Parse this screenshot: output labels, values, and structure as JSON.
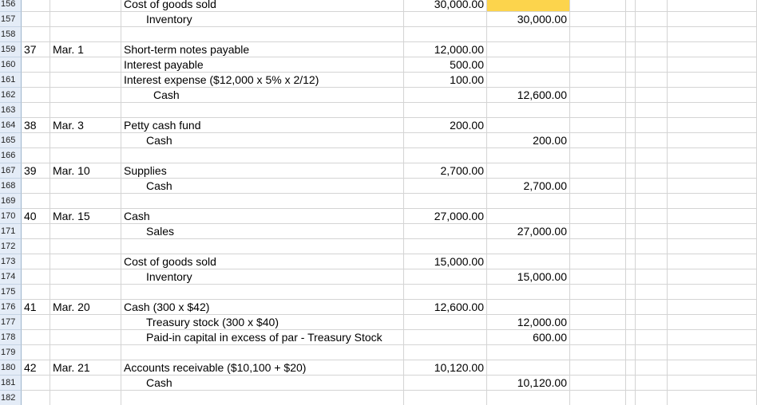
{
  "rows": [
    {
      "n": "156",
      "num": "",
      "date": "",
      "desc": "Cost of goods sold",
      "indent": 0,
      "debit": "30,000.00",
      "credit": ""
    },
    {
      "n": "157",
      "num": "",
      "date": "",
      "desc": "Inventory",
      "indent": 1,
      "debit": "",
      "credit": "30,000.00"
    },
    {
      "n": "158",
      "num": "",
      "date": "",
      "desc": "",
      "indent": 0,
      "debit": "",
      "credit": ""
    },
    {
      "n": "159",
      "num": "37",
      "date": "Mar. 1",
      "desc": "Short-term notes payable",
      "indent": 0,
      "debit": "12,000.00",
      "credit": ""
    },
    {
      "n": "160",
      "num": "",
      "date": "",
      "desc": "Interest payable",
      "indent": 0,
      "debit": "500.00",
      "credit": ""
    },
    {
      "n": "161",
      "num": "",
      "date": "",
      "desc": "Interest expense ($12,000 x 5% x 2/12)",
      "indent": 0,
      "debit": "100.00",
      "credit": ""
    },
    {
      "n": "162",
      "num": "",
      "date": "",
      "desc": "Cash",
      "indent": 2,
      "debit": "",
      "credit": "12,600.00"
    },
    {
      "n": "163",
      "num": "",
      "date": "",
      "desc": "",
      "indent": 0,
      "debit": "",
      "credit": ""
    },
    {
      "n": "164",
      "num": "38",
      "date": "Mar. 3",
      "desc": "Petty cash fund",
      "indent": 0,
      "debit": "200.00",
      "credit": ""
    },
    {
      "n": "165",
      "num": "",
      "date": "",
      "desc": "Cash",
      "indent": 1,
      "debit": "",
      "credit": "200.00"
    },
    {
      "n": "166",
      "num": "",
      "date": "",
      "desc": "",
      "indent": 0,
      "debit": "",
      "credit": ""
    },
    {
      "n": "167",
      "num": "39",
      "date": "Mar. 10",
      "desc": "Supplies",
      "indent": 0,
      "debit": "2,700.00",
      "credit": ""
    },
    {
      "n": "168",
      "num": "",
      "date": "",
      "desc": "Cash",
      "indent": 1,
      "debit": "",
      "credit": "2,700.00"
    },
    {
      "n": "169",
      "num": "",
      "date": "",
      "desc": "",
      "indent": 0,
      "debit": "",
      "credit": ""
    },
    {
      "n": "170",
      "num": "40",
      "date": "Mar. 15",
      "desc": "Cash",
      "indent": 0,
      "debit": "27,000.00",
      "credit": ""
    },
    {
      "n": "171",
      "num": "",
      "date": "",
      "desc": "Sales",
      "indent": 1,
      "debit": "",
      "credit": "27,000.00"
    },
    {
      "n": "172",
      "num": "",
      "date": "",
      "desc": "",
      "indent": 0,
      "debit": "",
      "credit": ""
    },
    {
      "n": "173",
      "num": "",
      "date": "",
      "desc": "Cost of goods sold",
      "indent": 0,
      "debit": "15,000.00",
      "credit": ""
    },
    {
      "n": "174",
      "num": "",
      "date": "",
      "desc": "Inventory",
      "indent": 1,
      "debit": "",
      "credit": "15,000.00"
    },
    {
      "n": "175",
      "num": "",
      "date": "",
      "desc": "",
      "indent": 0,
      "debit": "",
      "credit": ""
    },
    {
      "n": "176",
      "num": "41",
      "date": "Mar. 20",
      "desc": "Cash (300 x $42)",
      "indent": 0,
      "debit": "12,600.00",
      "credit": ""
    },
    {
      "n": "177",
      "num": "",
      "date": "",
      "desc": "Treasury stock (300  x $40)",
      "indent": 1,
      "debit": "",
      "credit": "12,000.00"
    },
    {
      "n": "178",
      "num": "",
      "date": "",
      "desc": "Paid-in capital in excess of par - Treasury Stock",
      "indent": 1,
      "debit": "",
      "credit": "600.00"
    },
    {
      "n": "179",
      "num": "",
      "date": "",
      "desc": "",
      "indent": 0,
      "debit": "",
      "credit": ""
    },
    {
      "n": "180",
      "num": "42",
      "date": "Mar. 21",
      "desc": "Accounts receivable  ($10,100 + $20)",
      "indent": 0,
      "debit": "10,120.00",
      "credit": ""
    },
    {
      "n": "181",
      "num": "",
      "date": "",
      "desc": "Cash",
      "indent": 1,
      "debit": "",
      "credit": "10,120.00"
    },
    {
      "n": "182",
      "num": "",
      "date": "",
      "desc": "",
      "indent": 0,
      "debit": "",
      "credit": ""
    }
  ],
  "colors": {
    "selection": "#fcd44c",
    "header_bg": "#e4ecf7",
    "grid": "#d4d4d4"
  }
}
